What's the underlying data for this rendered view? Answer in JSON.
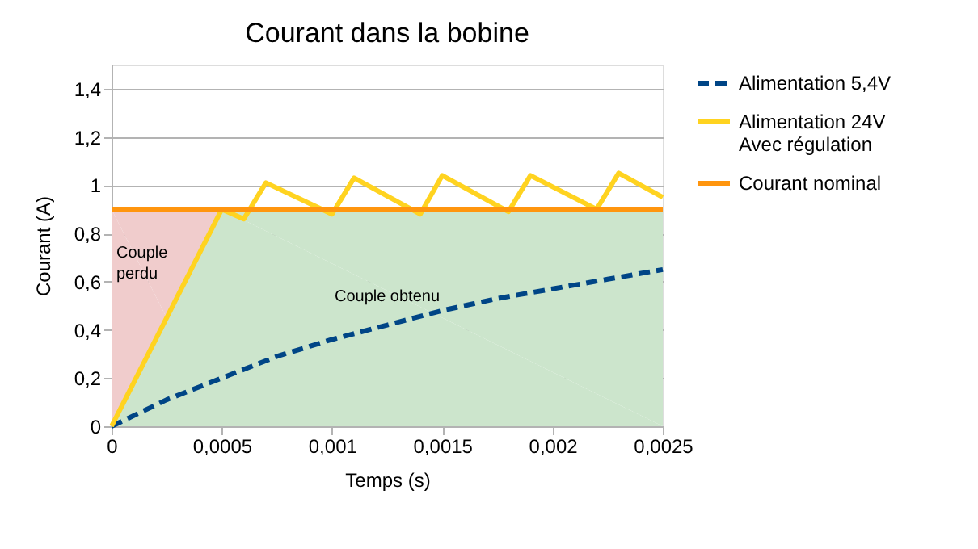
{
  "chart_data": {
    "type": "line",
    "title": "Courant dans la bobine",
    "xlabel": "Temps (s)",
    "ylabel": "Courant (A)",
    "xlim": [
      0,
      0.0025
    ],
    "ylim": [
      0,
      1.5
    ],
    "xticks": [
      0,
      {
        "value": 0.0005,
        "label": "0,0005"
      },
      {
        "value": 0.001,
        "label": "0,001"
      },
      {
        "value": 0.0015,
        "label": "0,0015"
      },
      {
        "value": 0.002,
        "label": "0,002"
      },
      {
        "value": 0.0025,
        "label": "0,0025"
      }
    ],
    "yticks": [
      0,
      {
        "value": 0.2,
        "label": "0,2"
      },
      {
        "value": 0.4,
        "label": "0,4"
      },
      {
        "value": 0.6,
        "label": "0,6"
      },
      {
        "value": 0.8,
        "label": "0,8"
      },
      1,
      {
        "value": 1.2,
        "label": "1,2"
      },
      {
        "value": 1.4,
        "label": "1,4"
      }
    ],
    "grid": "y",
    "legend": "right",
    "series": [
      {
        "name": "Couple perdu",
        "type": "area",
        "color": "#f0cccc",
        "x": [
          0,
          0.0005
        ],
        "values": [
          0.9,
          0.9
        ]
      },
      {
        "name": "Couple obtenu",
        "type": "area",
        "color": "#cce5cc",
        "x": [
          0,
          0.0005,
          0.0025
        ],
        "values": [
          0,
          0.9,
          0.9
        ]
      },
      {
        "name": "Alimentation 5,4V",
        "color": "#004586",
        "line_style": "dashed",
        "x": [
          0,
          0.00025,
          0.0005,
          0.00075,
          0.001,
          0.00125,
          0.0015,
          0.00175,
          0.002,
          0.00225,
          0.0025
        ],
        "values": [
          0,
          0.11,
          0.2,
          0.29,
          0.36,
          0.42,
          0.48,
          0.53,
          0.57,
          0.61,
          0.65
        ]
      },
      {
        "name": "Alimentation 24V\nAvec régulation",
        "color": "#ffd320",
        "line_style": "solid",
        "x": [
          0,
          0.0005,
          0.0006,
          0.0007,
          0.001,
          0.0011,
          0.0014,
          0.0015,
          0.0018,
          0.0019,
          0.0022,
          0.0023,
          0.0025
        ],
        "values": [
          0,
          0.9,
          0.86,
          1.01,
          0.88,
          1.03,
          0.88,
          1.04,
          0.89,
          1.04,
          0.9,
          1.05,
          0.95
        ]
      },
      {
        "name": "Courant nominal",
        "color": "#ff950e",
        "line_style": "solid",
        "x": [
          0,
          0.0025
        ],
        "values": [
          0.9,
          0.9
        ]
      }
    ]
  }
}
